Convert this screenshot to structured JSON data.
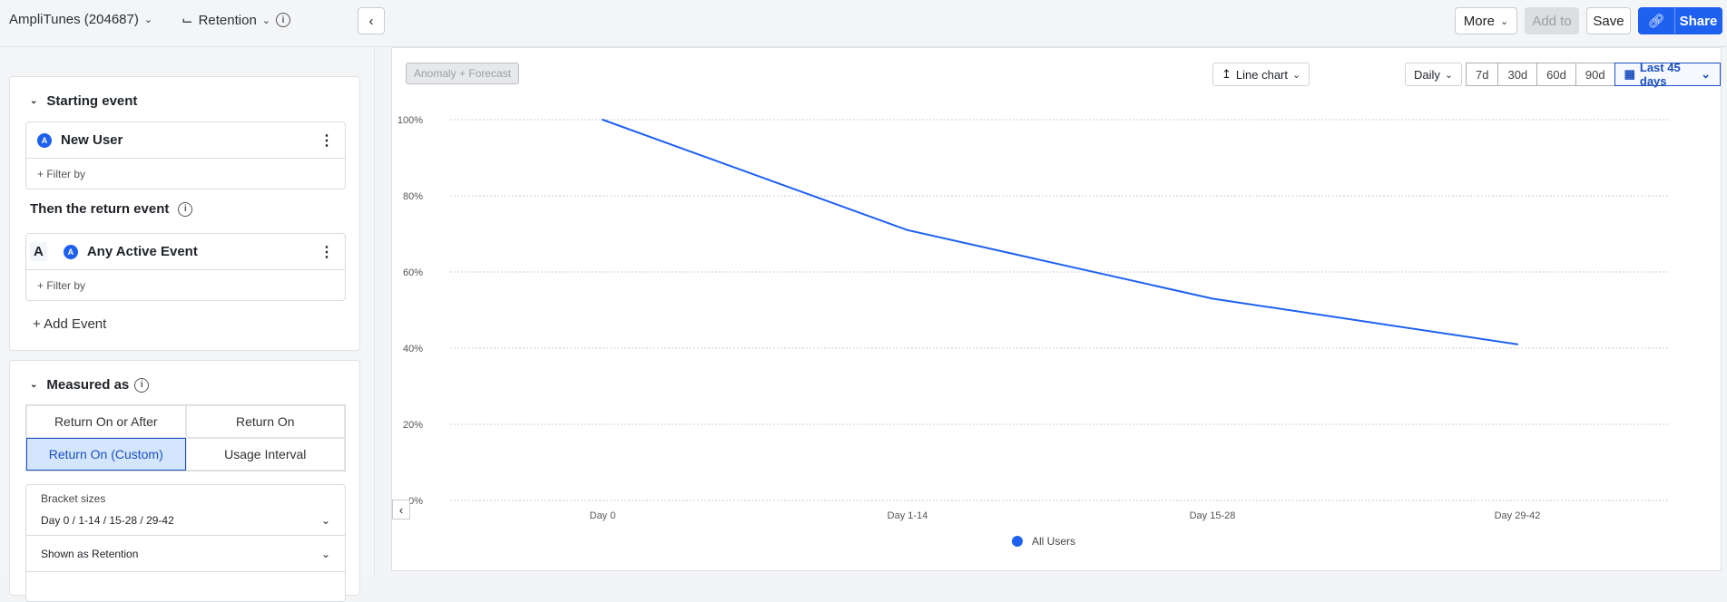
{
  "header": {
    "project": "AmpliTunes (204687)",
    "chart_type": "Retention",
    "more": "More",
    "add_to": "Add to",
    "save": "Save",
    "share": "Share"
  },
  "left": {
    "starting_event": {
      "title": "Starting event",
      "event": "New User",
      "filter": "+ Filter by"
    },
    "return_event": {
      "title": "Then the return event",
      "label": "A",
      "event": "Any Active Event",
      "filter": "+ Filter by"
    },
    "add_event": "+ Add Event",
    "measured": {
      "title": "Measured as",
      "options": [
        "Return On or After",
        "Return On",
        "Return On (Custom)",
        "Usage Interval"
      ],
      "selected": "Return On (Custom)",
      "bracket_label": "Bracket sizes",
      "bracket_value": "Day 0 / 1-14 / 15-28 / 29-42",
      "shown_as": "Shown as Retention"
    }
  },
  "toolbar": {
    "anomaly": "Anomaly + Forecast",
    "chart_select": "Line chart",
    "interval": "Daily",
    "ranges": [
      "7d",
      "30d",
      "60d",
      "90d"
    ],
    "active_range": "Last 45 days"
  },
  "colors": {
    "accent": "#1e61f0",
    "selected_bg": "#d3e6fd"
  },
  "chart_data": {
    "type": "line",
    "categories": [
      "Day 0",
      "Day 1-14",
      "Day 15-28",
      "Day 29-42"
    ],
    "series": [
      {
        "name": "All Users",
        "values": [
          100,
          71,
          53,
          41
        ],
        "color": "#1e61f0"
      }
    ],
    "yticks": [
      "0%",
      "20%",
      "40%",
      "60%",
      "80%",
      "100%"
    ],
    "ylim": [
      0,
      100
    ],
    "grid": true,
    "legend": "bottom"
  }
}
